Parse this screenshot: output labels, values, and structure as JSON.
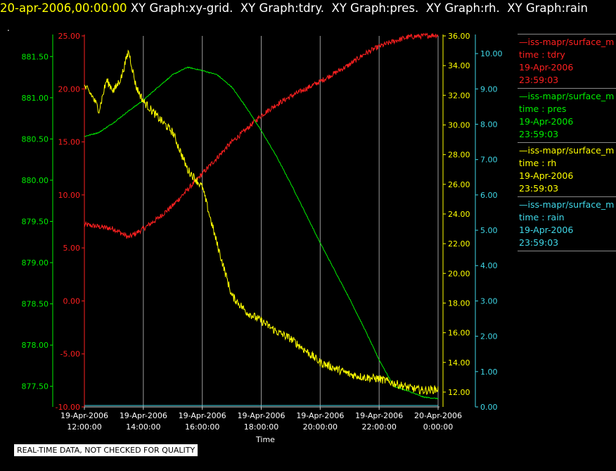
{
  "header": {
    "timestamp": "20-apr-2006,00:00:00",
    "graph_titles": [
      "XY Graph:xy-grid.",
      "XY Graph:tdry.",
      "XY Graph:pres.",
      "XY Graph:rh.",
      "XY Graph:rain"
    ]
  },
  "dot_text": ".",
  "disclaimer": "REAL-TIME DATA, NOT CHECKED FOR QUALITY",
  "legend": [
    {
      "source": "—iss-mapr/surface_m",
      "field": "time : tdry",
      "date": "19-Apr-2006",
      "time": "23:59:03",
      "color": "#ff2020"
    },
    {
      "source": "—iss-mapr/surface_m",
      "field": "time : pres",
      "date": "19-Apr-2006",
      "time": "23:59:03",
      "color": "#00ee00"
    },
    {
      "source": "—iss-mapr/surface_m",
      "field": "time : rh",
      "date": "19-Apr-2006",
      "time": "23:59:03",
      "color": "#ffff00"
    },
    {
      "source": "—iss-mapr/surface_m",
      "field": "time : rain",
      "date": "19-Apr-2006",
      "time": "23:59:03",
      "color": "#40d8e8"
    }
  ],
  "chart_data": {
    "type": "line",
    "grid": true,
    "xlabel": "Time",
    "xlim": [
      12,
      24
    ],
    "x_ticks": [
      {
        "value": 12,
        "line1": "19-Apr-2006",
        "line2": "12:00:00"
      },
      {
        "value": 14,
        "line1": "19-Apr-2006",
        "line2": "14:00:00"
      },
      {
        "value": 16,
        "line1": "19-Apr-2006",
        "line2": "16:00:00"
      },
      {
        "value": 18,
        "line1": "19-Apr-2006",
        "line2": "18:00:00"
      },
      {
        "value": 20,
        "line1": "19-Apr-2006",
        "line2": "20:00:00"
      },
      {
        "value": 22,
        "line1": "19-Apr-2006",
        "line2": "22:00:00"
      },
      {
        "value": 24,
        "line1": "20-Apr-2006",
        "line2": "0:00:00"
      }
    ],
    "axes": [
      {
        "id": "pres",
        "color": "#00ee00",
        "side": "left-outer",
        "ylim": [
          877.25,
          881.75
        ],
        "ticks": [
          "877.50",
          "878.00",
          "878.50",
          "879.00",
          "879.50",
          "880.00",
          "880.50",
          "881.00",
          "881.50"
        ]
      },
      {
        "id": "tdry",
        "color": "#ff2020",
        "side": "left-inner",
        "ylim": [
          -10,
          25
        ],
        "ticks": [
          "-10.00",
          "-5.00",
          "0.00",
          "5.00",
          "10.00",
          "15.00",
          "20.00",
          "25.00"
        ]
      },
      {
        "id": "rh",
        "color": "#ffff00",
        "side": "right-inner",
        "ylim": [
          11,
          36
        ],
        "ticks": [
          "12.00",
          "14.00",
          "16.00",
          "18.00",
          "20.00",
          "22.00",
          "24.00",
          "26.00",
          "28.00",
          "30.00",
          "32.00",
          "34.00",
          "36.00"
        ]
      },
      {
        "id": "rain",
        "color": "#40d8e8",
        "side": "right-outer",
        "ylim": [
          0,
          10.5
        ],
        "ticks": [
          "0.00",
          "1.00",
          "2.00",
          "3.00",
          "4.00",
          "5.00",
          "6.00",
          "7.00",
          "8.00",
          "9.00",
          "10.00"
        ]
      }
    ],
    "series": [
      {
        "axis": "tdry",
        "color": "#ff2020",
        "noise": 0.25,
        "x": [
          12,
          12.5,
          13,
          13.5,
          14,
          14.5,
          15,
          15.5,
          16,
          16.5,
          17,
          17.5,
          18,
          18.5,
          19,
          19.5,
          20,
          20.5,
          21,
          21.5,
          22,
          22.5,
          23,
          23.5,
          24
        ],
        "y": [
          7.2,
          7.0,
          6.8,
          6.0,
          6.8,
          7.8,
          9.0,
          10.5,
          12.0,
          13.5,
          15.0,
          16.2,
          17.5,
          18.5,
          19.3,
          20.0,
          20.7,
          21.5,
          22.3,
          23.3,
          24.0,
          24.5,
          24.9,
          25.0,
          25.1
        ]
      },
      {
        "axis": "pres",
        "color": "#00ee00",
        "noise": 0.006,
        "x": [
          12,
          12.5,
          13,
          13.5,
          14,
          14.5,
          15,
          15.5,
          16,
          16.5,
          17,
          17.5,
          18,
          18.5,
          19,
          19.5,
          20,
          20.5,
          21,
          21.5,
          22,
          22.5,
          23,
          23.5,
          24
        ],
        "y": [
          880.53,
          880.58,
          880.7,
          880.84,
          880.97,
          881.13,
          881.28,
          881.37,
          881.33,
          881.28,
          881.13,
          880.88,
          880.6,
          880.3,
          879.96,
          879.6,
          879.24,
          878.9,
          878.56,
          878.2,
          877.82,
          877.5,
          877.44,
          877.37,
          877.35
        ]
      },
      {
        "axis": "rh",
        "color": "#ffff00",
        "noise": 0.28,
        "x": [
          12,
          12.25,
          12.5,
          12.75,
          13,
          13.25,
          13.5,
          13.75,
          14,
          14.5,
          15,
          15.5,
          16,
          16.5,
          17,
          17.5,
          18,
          18.5,
          19,
          19.5,
          20,
          20.5,
          21,
          21.5,
          22,
          22.5,
          23,
          23.5,
          24
        ],
        "y": [
          32.6,
          32.0,
          31.0,
          33.0,
          32.3,
          33.2,
          35.0,
          32.6,
          31.6,
          30.5,
          29.5,
          27.0,
          25.8,
          22.0,
          18.5,
          17.4,
          16.8,
          16.1,
          15.6,
          14.8,
          14.0,
          13.6,
          13.2,
          13.0,
          12.9,
          12.6,
          12.3,
          12.1,
          12.2
        ]
      },
      {
        "axis": "rain",
        "color": "#40d8e8",
        "noise": 0,
        "x": [
          12,
          24
        ],
        "y": [
          0,
          0
        ]
      }
    ]
  }
}
